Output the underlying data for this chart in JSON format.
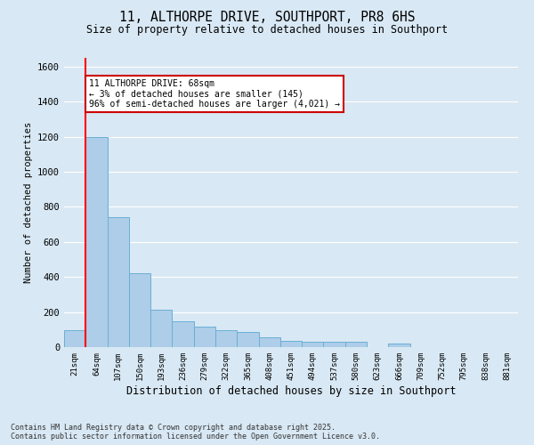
{
  "title_line1": "11, ALTHORPE DRIVE, SOUTHPORT, PR8 6HS",
  "title_line2": "Size of property relative to detached houses in Southport",
  "xlabel": "Distribution of detached houses by size in Southport",
  "ylabel": "Number of detached properties",
  "categories": [
    "21sqm",
    "64sqm",
    "107sqm",
    "150sqm",
    "193sqm",
    "236sqm",
    "279sqm",
    "322sqm",
    "365sqm",
    "408sqm",
    "451sqm",
    "494sqm",
    "537sqm",
    "580sqm",
    "623sqm",
    "666sqm",
    "709sqm",
    "752sqm",
    "795sqm",
    "838sqm",
    "881sqm"
  ],
  "values": [
    95,
    1200,
    740,
    420,
    215,
    145,
    115,
    95,
    85,
    55,
    38,
    32,
    28,
    28,
    2,
    18,
    2,
    2,
    2,
    2,
    2
  ],
  "bar_color": "#aecde8",
  "bar_edge_color": "#6aafd6",
  "background_color": "#d8e8f4",
  "grid_color": "#ffffff",
  "ylim": [
    0,
    1650
  ],
  "yticks": [
    0,
    200,
    400,
    600,
    800,
    1000,
    1200,
    1400,
    1600
  ],
  "red_line_x": 0.5,
  "annotation_text": "11 ALTHORPE DRIVE: 68sqm\n← 3% of detached houses are smaller (145)\n96% of semi-detached houses are larger (4,021) →",
  "annotation_box_color": "#ffffff",
  "annotation_box_edge": "#cc0000",
  "footer_line1": "Contains HM Land Registry data © Crown copyright and database right 2025.",
  "footer_line2": "Contains public sector information licensed under the Open Government Licence v3.0."
}
